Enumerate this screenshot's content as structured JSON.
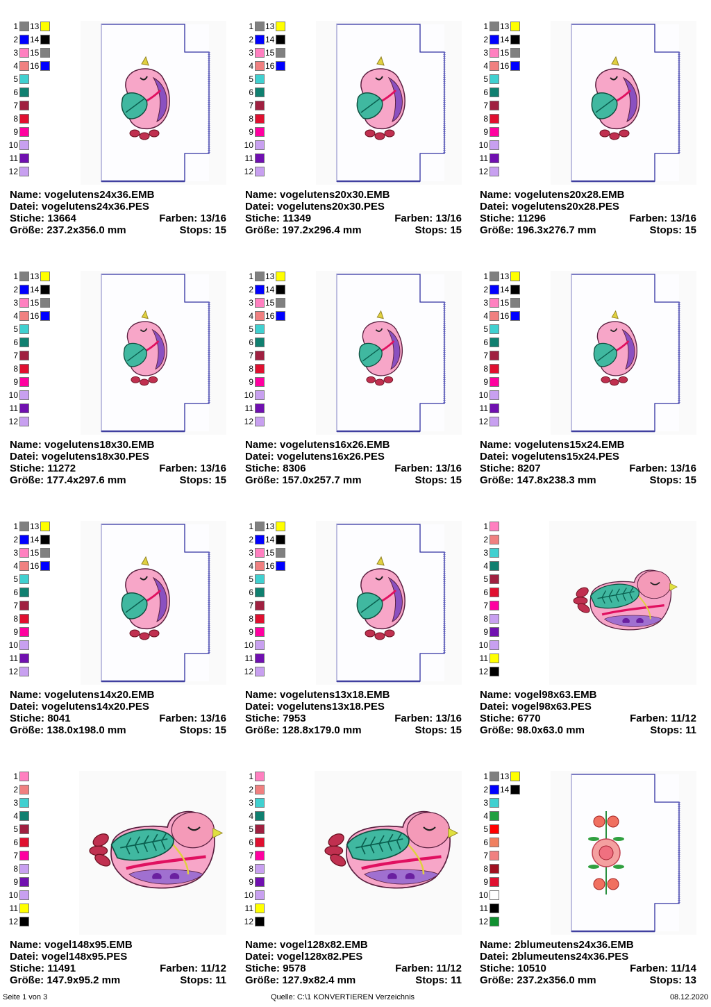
{
  "labels": {
    "name": "Name:",
    "file": "Datei:",
    "stitches": "Stiche:",
    "colors": "Farben:",
    "size": "Größe:",
    "stops": "Stops:"
  },
  "designs": [
    {
      "name": "vogelutens24x36.EMB",
      "file": "vogelutens24x36.PES",
      "stitches": "13664",
      "colors": "13/16",
      "size": "237.2x356.0 mm",
      "stops": "15",
      "kind": "utens",
      "scale": 1.0,
      "palette": [
        "#808080",
        "#0000ff",
        "#ff80c0",
        "#f08080",
        "#40d0d0",
        "#108070",
        "#a02040",
        "#e01030",
        "#ff00a0",
        "#c8a0f0",
        "#7010b0",
        "#c8a0f0",
        "#ffff00",
        "#000000",
        "#808080",
        "#0000ff"
      ]
    },
    {
      "name": "vogelutens20x30.EMB",
      "file": "vogelutens20x30.PES",
      "stitches": "11349",
      "colors": "13/16",
      "size": "197.2x296.4 mm",
      "stops": "15",
      "kind": "utens",
      "scale": 1.0,
      "palette": [
        "#808080",
        "#0000ff",
        "#ff80c0",
        "#f08080",
        "#40d0d0",
        "#108070",
        "#a02040",
        "#e01030",
        "#ff00a0",
        "#c8a0f0",
        "#7010b0",
        "#c8a0f0",
        "#ffff00",
        "#000000",
        "#808080",
        "#0000ff"
      ]
    },
    {
      "name": "vogelutens20x28.EMB",
      "file": "vogelutens20x28.PES",
      "stitches": "11296",
      "colors": "13/16",
      "size": "196.3x276.7 mm",
      "stops": "15",
      "kind": "utens",
      "scale": 1.0,
      "palette": [
        "#808080",
        "#0000ff",
        "#ff80c0",
        "#f08080",
        "#40d0d0",
        "#108070",
        "#a02040",
        "#e01030",
        "#ff00a0",
        "#c8a0f0",
        "#7010b0",
        "#c8a0f0",
        "#ffff00",
        "#000000",
        "#808080",
        "#0000ff"
      ]
    },
    {
      "name": "vogelutens18x30.EMB",
      "file": "vogelutens18x30.PES",
      "stitches": "11272",
      "colors": "13/16",
      "size": "177.4x297.6 mm",
      "stops": "15",
      "kind": "utens",
      "scale": 0.9,
      "palette": [
        "#808080",
        "#0000ff",
        "#ff80c0",
        "#f08080",
        "#40d0d0",
        "#108070",
        "#a02040",
        "#e01030",
        "#ff00a0",
        "#c8a0f0",
        "#7010b0",
        "#c8a0f0",
        "#ffff00",
        "#000000",
        "#808080",
        "#0000ff"
      ]
    },
    {
      "name": "vogelutens16x26.EMB",
      "file": "vogelutens16x26.PES",
      "stitches": "8306",
      "colors": "13/16",
      "size": "157.0x257.7 mm",
      "stops": "15",
      "kind": "utens",
      "scale": 0.9,
      "palette": [
        "#808080",
        "#0000ff",
        "#ff80c0",
        "#f08080",
        "#40d0d0",
        "#108070",
        "#a02040",
        "#e01030",
        "#ff00a0",
        "#c8a0f0",
        "#7010b0",
        "#c8a0f0",
        "#ffff00",
        "#000000",
        "#808080",
        "#0000ff"
      ]
    },
    {
      "name": "vogelutens15x24.EMB",
      "file": "vogelutens15x24.PES",
      "stitches": "8207",
      "colors": "13/16",
      "size": "147.8x238.3 mm",
      "stops": "15",
      "kind": "utens",
      "scale": 0.9,
      "palette": [
        "#808080",
        "#0000ff",
        "#ff80c0",
        "#f08080",
        "#40d0d0",
        "#108070",
        "#a02040",
        "#e01030",
        "#ff00a0",
        "#c8a0f0",
        "#7010b0",
        "#c8a0f0",
        "#ffff00",
        "#000000",
        "#808080",
        "#0000ff"
      ]
    },
    {
      "name": "vogelutens14x20.EMB",
      "file": "vogelutens14x20.PES",
      "stitches": "8041",
      "colors": "13/16",
      "size": "138.0x198.0 mm",
      "stops": "15",
      "kind": "utens",
      "scale": 1.0,
      "palette": [
        "#808080",
        "#0000ff",
        "#ff80c0",
        "#f08080",
        "#40d0d0",
        "#108070",
        "#a02040",
        "#e01030",
        "#ff00a0",
        "#c8a0f0",
        "#7010b0",
        "#c8a0f0",
        "#ffff00",
        "#000000",
        "#808080",
        "#0000ff"
      ]
    },
    {
      "name": "vogelutens13x18.EMB",
      "file": "vogelutens13x18.PES",
      "stitches": "7953",
      "colors": "13/16",
      "size": "128.8x179.0 mm",
      "stops": "15",
      "kind": "utens",
      "scale": 1.0,
      "palette": [
        "#808080",
        "#0000ff",
        "#ff80c0",
        "#f08080",
        "#40d0d0",
        "#108070",
        "#a02040",
        "#e01030",
        "#ff00a0",
        "#c8a0f0",
        "#7010b0",
        "#c8a0f0",
        "#ffff00",
        "#000000",
        "#808080",
        "#0000ff"
      ]
    },
    {
      "name": "vogel98x63.EMB",
      "file": "vogel98x63.PES",
      "stitches": "6770",
      "colors": "11/12",
      "size": "98.0x63.0 mm",
      "stops": "11",
      "kind": "bird",
      "scale": 0.78,
      "palette": [
        "#ff80c0",
        "#f08080",
        "#40d0d0",
        "#108070",
        "#a02040",
        "#e01030",
        "#ff00a0",
        "#c8a0f0",
        "#7010b0",
        "#c8a0f0",
        "#ffff00",
        "#000000"
      ]
    },
    {
      "name": "vogel148x95.EMB",
      "file": "vogel148x95.PES",
      "stitches": "11491",
      "colors": "11/12",
      "size": "147.9x95.2 mm",
      "stops": "11",
      "kind": "bird",
      "scale": 1.0,
      "palette": [
        "#ff80c0",
        "#f08080",
        "#40d0d0",
        "#108070",
        "#a02040",
        "#e01030",
        "#ff00a0",
        "#c8a0f0",
        "#7010b0",
        "#c8a0f0",
        "#ffff00",
        "#000000"
      ]
    },
    {
      "name": "vogel128x82.EMB",
      "file": "vogel128x82.PES",
      "stitches": "9578",
      "colors": "11/12",
      "size": "127.9x82.4 mm",
      "stops": "11",
      "kind": "bird",
      "scale": 1.0,
      "palette": [
        "#ff80c0",
        "#f08080",
        "#40d0d0",
        "#108070",
        "#a02040",
        "#e01030",
        "#ff00a0",
        "#c8a0f0",
        "#7010b0",
        "#c8a0f0",
        "#ffff00",
        "#000000"
      ]
    },
    {
      "name": "2blumeutens24x36.EMB",
      "file": "2blumeutens24x36.PES",
      "stitches": "10510",
      "colors": "11/14",
      "size": "237.2x356.0 mm",
      "stops": "13",
      "kind": "flower",
      "scale": 1.0,
      "palette": [
        "#808080",
        "#0000ff",
        "#40d0d0",
        "#20a040",
        "#ff0000",
        "#f08060",
        "#f08080",
        "#a01020",
        "#e01030",
        "#ffffff",
        "#000000",
        "#109030",
        "#ffff00",
        "#000000"
      ]
    }
  ],
  "footer": {
    "page": "Seite 1 von 3",
    "source": "Quelle: C:\\1 KONVERTIEREN Verzeichnis",
    "date": "08.12.2020"
  }
}
